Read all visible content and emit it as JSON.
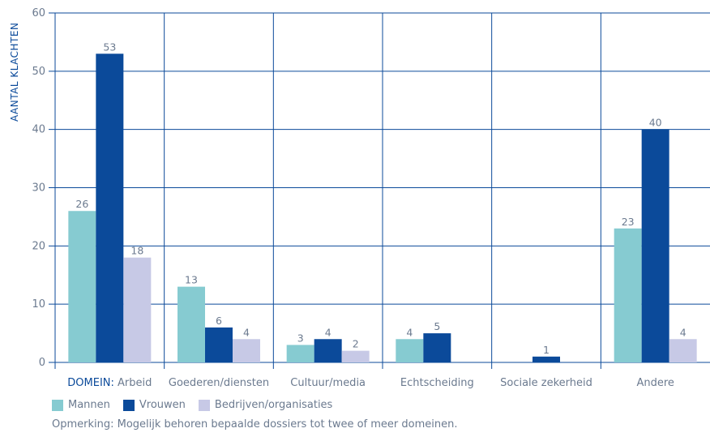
{
  "chart_data": {
    "type": "bar",
    "ylabel": "AANTAL KLACHTEN",
    "xlabel_prefix": "DOMEIN:",
    "categories": [
      "Arbeid",
      "Goederen/diensten",
      "Cultuur/media",
      "Echtscheiding",
      "Sociale zekerheid",
      "Andere"
    ],
    "series": [
      {
        "name": "Mannen",
        "color": "#86cbd1",
        "values": [
          26,
          13,
          3,
          4,
          null,
          23
        ]
      },
      {
        "name": "Vrouwen",
        "color": "#0b4a9a",
        "values": [
          53,
          6,
          4,
          5,
          1,
          40
        ]
      },
      {
        "name": "Bedrijven/organisaties",
        "color": "#c7c9e6",
        "values": [
          18,
          4,
          2,
          null,
          null,
          4
        ]
      }
    ],
    "ylim": [
      0,
      60
    ],
    "yticks": [
      0,
      10,
      20,
      30,
      40,
      50,
      60
    ],
    "grid": true,
    "legend_position": "bottom-left"
  },
  "note": "Opmerking:  Mogelijk behoren bepaalde dossiers tot twee of meer domeinen."
}
